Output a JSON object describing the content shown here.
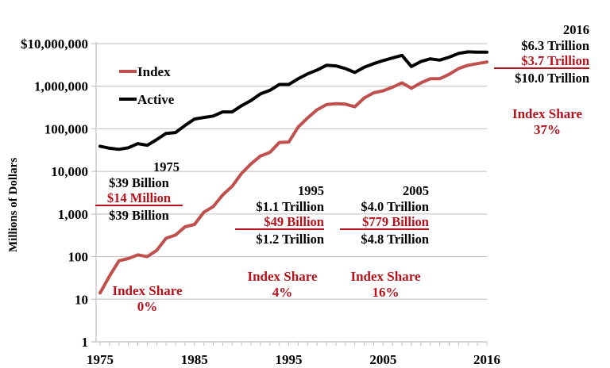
{
  "chart_data": {
    "type": "line",
    "title": "",
    "xlabel": "",
    "ylabel": "Millions of Dollars",
    "yscale": "log",
    "ylim": [
      1,
      10000000
    ],
    "xlim": [
      1975,
      2016
    ],
    "grid": true,
    "legend_position": "top-left",
    "y_ticks": [
      {
        "value": 10000000,
        "label": "$10,000,000"
      },
      {
        "value": 1000000,
        "label": "1,000,000"
      },
      {
        "value": 100000,
        "label": "100,000"
      },
      {
        "value": 10000,
        "label": "10,000"
      },
      {
        "value": 1000,
        "label": "1,000"
      },
      {
        "value": 100,
        "label": "100"
      },
      {
        "value": 10,
        "label": "10"
      },
      {
        "value": 1,
        "label": "1"
      }
    ],
    "x_ticks": [
      {
        "value": 1975,
        "label": "1975"
      },
      {
        "value": 1985,
        "label": "1985"
      },
      {
        "value": 1995,
        "label": "1995"
      },
      {
        "value": 2005,
        "label": "2005"
      },
      {
        "value": 2016,
        "label": "2016"
      }
    ],
    "x": [
      1975,
      1976,
      1977,
      1978,
      1979,
      1980,
      1981,
      1982,
      1983,
      1984,
      1985,
      1986,
      1987,
      1988,
      1989,
      1990,
      1991,
      1992,
      1993,
      1994,
      1995,
      1996,
      1997,
      1998,
      1999,
      2000,
      2001,
      2002,
      2003,
      2004,
      2005,
      2006,
      2007,
      2008,
      2009,
      2010,
      2011,
      2012,
      2013,
      2014,
      2015,
      2016
    ],
    "series": [
      {
        "name": "Index",
        "color": "#c0504d",
        "values": [
          14,
          35,
          80,
          90,
          110,
          100,
          140,
          270,
          320,
          500,
          570,
          1100,
          1500,
          2800,
          4500,
          9000,
          15000,
          23000,
          28000,
          48000,
          49000,
          110000,
          180000,
          280000,
          370000,
          390000,
          380000,
          330000,
          530000,
          700000,
          779000,
          950000,
          1200000,
          900000,
          1200000,
          1500000,
          1500000,
          1900000,
          2600000,
          3100000,
          3400000,
          3700000
        ]
      },
      {
        "name": "Active",
        "color": "#000000",
        "values": [
          39000,
          35000,
          33000,
          36000,
          45000,
          41000,
          56000,
          78000,
          82000,
          120000,
          170000,
          185000,
          200000,
          250000,
          250000,
          350000,
          460000,
          660000,
          800000,
          1100000,
          1100000,
          1500000,
          1950000,
          2400000,
          3100000,
          3000000,
          2600000,
          2100000,
          2800000,
          3400000,
          4000000,
          4600000,
          5300000,
          2900000,
          3800000,
          4400000,
          4100000,
          4800000,
          5900000,
          6400000,
          6300000,
          6300000
        ]
      }
    ],
    "annotations": [
      {
        "year": "1975",
        "active": "$39 Billion",
        "index": "$14 Million",
        "total": "$39 Billion",
        "share_label": "Index Share",
        "share": "0%"
      },
      {
        "year": "1995",
        "active": "$1.1 Trillion",
        "index": "$49 Billion",
        "total": "$1.2 Trillion",
        "share_label": "Index Share",
        "share": "4%"
      },
      {
        "year": "2005",
        "active": "$4.0 Trillion",
        "index": "$779 Billion",
        "total": "$4.8 Trillion",
        "share_label": "Index Share",
        "share": "16%"
      },
      {
        "year": "2016",
        "active": "$6.3 Trillion",
        "index": "$3.7 Trillion",
        "total": "$10.0 Trillion",
        "share_label": "Index Share",
        "share": "37%"
      }
    ]
  }
}
